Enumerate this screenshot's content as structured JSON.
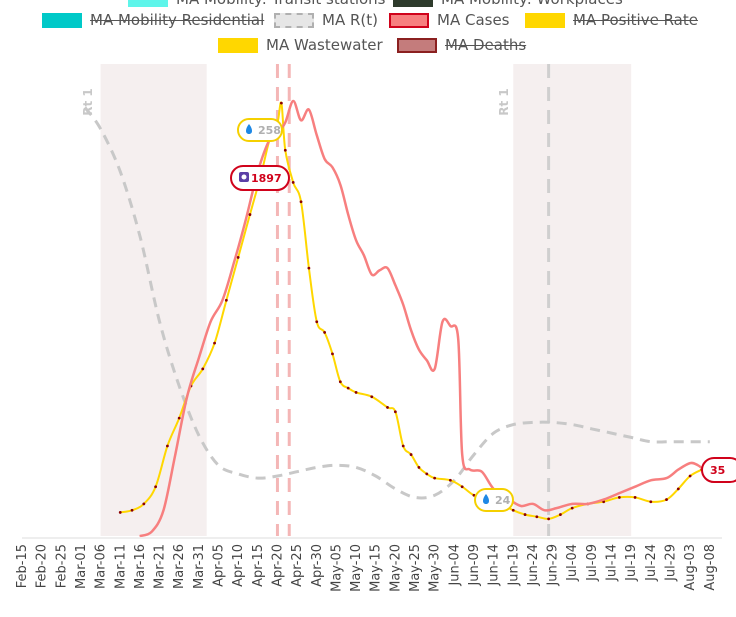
{
  "legend": {
    "items": [
      {
        "label": "MA Mobility: Transit stations",
        "color": "#5ef5ea",
        "struck": false,
        "style": "solid"
      },
      {
        "label": "MA Mobility: Workplaces",
        "color": "#2e3b2c",
        "struck": false,
        "style": "solid"
      },
      {
        "label": "MA Mobility Residential",
        "color": "#00c9c8",
        "struck": true,
        "style": "solid"
      },
      {
        "label": "MA R(t)",
        "color": "#c8c8c8",
        "struck": false,
        "style": "dashed"
      },
      {
        "label": "MA Cases",
        "color": "#f77f7f",
        "struck": false,
        "style": "outlined"
      },
      {
        "label": "MA Positive Rate",
        "color": "#ffd700",
        "struck": true,
        "style": "solid"
      },
      {
        "label": "MA Wastewater",
        "color": "#ffd700",
        "struck": false,
        "style": "solid"
      },
      {
        "label": "MA Deaths",
        "color": "#c47c7c",
        "struck": true,
        "style": "outlined"
      }
    ]
  },
  "badges": {
    "wastewater_peak": "258",
    "wastewater_low": "24",
    "cases_peak": "1897",
    "cases_end": "35"
  },
  "annotations": {
    "rt1_label": "Rt 1"
  },
  "colors": {
    "cases": "#f77f7f",
    "wastewater": "#ffd700",
    "rt": "#c8c8c8",
    "shade": "#f5efef",
    "badge_red": "#d0021b",
    "badge_yellow": "#f5d000",
    "marker": "#8b0000"
  },
  "chart_data": {
    "type": "line",
    "x_ticks": [
      "Feb-15",
      "Feb-20",
      "Feb-25",
      "Mar-01",
      "Mar-06",
      "Mar-11",
      "Mar-16",
      "Mar-21",
      "Mar-26",
      "Mar-31",
      "Apr-05",
      "Apr-10",
      "Apr-15",
      "Apr-20",
      "Apr-25",
      "Apr-30",
      "May-05",
      "May-10",
      "May-15",
      "May-20",
      "May-25",
      "May-30",
      "Jun-04",
      "Jun-09",
      "Jun-14",
      "Jun-19",
      "Jun-24",
      "Jun-29",
      "Jul-04",
      "Jul-09",
      "Jul-14",
      "Jul-19",
      "Jul-24",
      "Jul-29",
      "Aug-03",
      "Aug-08"
    ],
    "shaded_ranges": [
      [
        "Mar-06",
        "Apr-02"
      ],
      [
        "Jun-19",
        "Jul-19"
      ]
    ],
    "vertical_lines": {
      "pink_dashed": [
        "Apr-20",
        "Apr-23"
      ],
      "gray_dashed": [
        "Jun-28"
      ]
    },
    "series": [
      {
        "name": "MA Cases",
        "points": [
          [
            "Mar-16",
            0
          ],
          [
            "Mar-19",
            20
          ],
          [
            "Mar-22",
            120
          ],
          [
            "Mar-25",
            380
          ],
          [
            "Mar-28",
            650
          ],
          [
            "Mar-31",
            830
          ],
          [
            "Apr-03",
            1000
          ],
          [
            "Apr-06",
            1100
          ],
          [
            "Apr-09",
            1280
          ],
          [
            "Apr-12",
            1480
          ],
          [
            "Apr-15",
            1700
          ],
          [
            "Apr-18",
            1850
          ],
          [
            "Apr-20",
            1880
          ],
          [
            "Apr-22",
            1930
          ],
          [
            "Apr-24",
            2030
          ],
          [
            "Apr-26",
            1940
          ],
          [
            "Apr-28",
            1990
          ],
          [
            "Apr-30",
            1870
          ],
          [
            "May-02",
            1760
          ],
          [
            "May-04",
            1720
          ],
          [
            "May-06",
            1640
          ],
          [
            "May-08",
            1500
          ],
          [
            "May-10",
            1380
          ],
          [
            "May-12",
            1310
          ],
          [
            "May-14",
            1220
          ],
          [
            "May-16",
            1240
          ],
          [
            "May-18",
            1250
          ],
          [
            "May-20",
            1170
          ],
          [
            "May-22",
            1080
          ],
          [
            "May-24",
            960
          ],
          [
            "May-26",
            870
          ],
          [
            "May-28",
            820
          ],
          [
            "May-30",
            780
          ],
          [
            "Jun-01",
            1000
          ],
          [
            "Jun-03",
            980
          ],
          [
            "Jun-05",
            920
          ],
          [
            "Jun-06",
            380
          ],
          [
            "Jun-08",
            310
          ],
          [
            "Jun-11",
            300
          ],
          [
            "Jun-14",
            220
          ],
          [
            "Jun-18",
            170
          ],
          [
            "Jun-21",
            140
          ],
          [
            "Jun-24",
            150
          ],
          [
            "Jun-27",
            120
          ],
          [
            "Jun-30",
            130
          ],
          [
            "Jul-04",
            150
          ],
          [
            "Jul-08",
            150
          ],
          [
            "Jul-12",
            170
          ],
          [
            "Jul-16",
            200
          ],
          [
            "Jul-20",
            230
          ],
          [
            "Jul-24",
            260
          ],
          [
            "Jul-28",
            270
          ],
          [
            "Jul-31",
            310
          ],
          [
            "Aug-03",
            340
          ],
          [
            "Aug-05",
            330
          ],
          [
            "Aug-07",
            300
          ]
        ]
      },
      {
        "name": "MA Wastewater",
        "points": [
          [
            "Mar-11",
            110
          ],
          [
            "Mar-14",
            120
          ],
          [
            "Mar-17",
            150
          ],
          [
            "Mar-20",
            230
          ],
          [
            "Mar-23",
            420
          ],
          [
            "Mar-26",
            550
          ],
          [
            "Mar-29",
            700
          ],
          [
            "Apr-01",
            780
          ],
          [
            "Apr-04",
            900
          ],
          [
            "Apr-07",
            1100
          ],
          [
            "Apr-10",
            1300
          ],
          [
            "Apr-13",
            1500
          ],
          [
            "Apr-16",
            1700
          ],
          [
            "Apr-18",
            1850
          ],
          [
            "Apr-20",
            1930
          ],
          [
            "Apr-21",
            2020
          ],
          [
            "Apr-22",
            1800
          ],
          [
            "Apr-24",
            1650
          ],
          [
            "Apr-26",
            1560
          ],
          [
            "Apr-28",
            1250
          ],
          [
            "Apr-30",
            1000
          ],
          [
            "May-02",
            950
          ],
          [
            "May-04",
            850
          ],
          [
            "May-06",
            720
          ],
          [
            "May-08",
            690
          ],
          [
            "May-10",
            670
          ],
          [
            "May-14",
            650
          ],
          [
            "May-18",
            600
          ],
          [
            "May-20",
            580
          ],
          [
            "May-22",
            420
          ],
          [
            "May-24",
            380
          ],
          [
            "May-26",
            320
          ],
          [
            "May-28",
            290
          ],
          [
            "May-30",
            270
          ],
          [
            "Jun-03",
            260
          ],
          [
            "Jun-06",
            230
          ],
          [
            "Jun-09",
            190
          ],
          [
            "Jun-12",
            180
          ],
          [
            "Jun-16",
            150
          ],
          [
            "Jun-19",
            120
          ],
          [
            "Jun-22",
            100
          ],
          [
            "Jun-25",
            90
          ],
          [
            "Jun-28",
            80
          ],
          [
            "Jul-01",
            100
          ],
          [
            "Jul-04",
            130
          ],
          [
            "Jul-08",
            150
          ],
          [
            "Jul-12",
            160
          ],
          [
            "Jul-16",
            180
          ],
          [
            "Jul-20",
            180
          ],
          [
            "Jul-24",
            160
          ],
          [
            "Jul-28",
            170
          ],
          [
            "Jul-31",
            220
          ],
          [
            "Aug-03",
            280
          ],
          [
            "Aug-06",
            310
          ]
        ]
      },
      {
        "name": "MA R(t)",
        "points": [
          [
            "Mar-02",
            2000
          ],
          [
            "Mar-06",
            1900
          ],
          [
            "Mar-11",
            1700
          ],
          [
            "Mar-16",
            1400
          ],
          [
            "Mar-21",
            1000
          ],
          [
            "Mar-26",
            700
          ],
          [
            "Mar-31",
            470
          ],
          [
            "Apr-05",
            330
          ],
          [
            "Apr-10",
            290
          ],
          [
            "Apr-15",
            270
          ],
          [
            "Apr-20",
            280
          ],
          [
            "Apr-25",
            300
          ],
          [
            "Apr-30",
            320
          ],
          [
            "May-05",
            330
          ],
          [
            "May-10",
            320
          ],
          [
            "May-15",
            280
          ],
          [
            "May-20",
            220
          ],
          [
            "May-25",
            180
          ],
          [
            "May-30",
            190
          ],
          [
            "Jun-04",
            260
          ],
          [
            "Jun-09",
            380
          ],
          [
            "Jun-14",
            480
          ],
          [
            "Jun-19",
            520
          ],
          [
            "Jun-24",
            530
          ],
          [
            "Jun-29",
            530
          ],
          [
            "Jul-04",
            520
          ],
          [
            "Jul-09",
            500
          ],
          [
            "Jul-14",
            480
          ],
          [
            "Jul-19",
            460
          ],
          [
            "Jul-24",
            440
          ],
          [
            "Jul-29",
            440
          ],
          [
            "Aug-03",
            440
          ],
          [
            "Aug-08",
            440
          ]
        ]
      }
    ],
    "ylim": [
      0,
      2100
    ],
    "grid": false
  }
}
